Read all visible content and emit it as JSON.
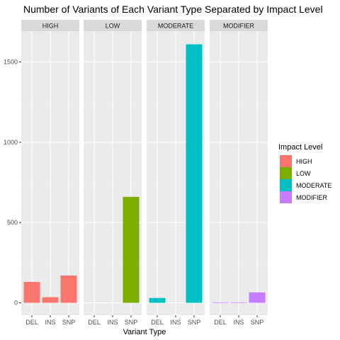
{
  "chart_data": {
    "type": "bar",
    "title": "Number of Variants of Each Variant Type Separated by Impact Level",
    "xlabel": "Variant Type",
    "ylabel": "",
    "ylim": [
      0,
      1620
    ],
    "y_ticks": [
      0,
      500,
      1000,
      1500
    ],
    "categories": [
      "DEL",
      "INS",
      "SNP"
    ],
    "facets": [
      "HIGH",
      "LOW",
      "MODERATE",
      "MODIFIER"
    ],
    "series": [
      {
        "name": "HIGH",
        "color": "#F8766D",
        "values": [
          130,
          35,
          170
        ]
      },
      {
        "name": "LOW",
        "color": "#7CAE00",
        "values": [
          0,
          0,
          660
        ]
      },
      {
        "name": "MODERATE",
        "color": "#00BFC4",
        "values": [
          30,
          0,
          1610
        ]
      },
      {
        "name": "MODIFIER",
        "color": "#C77CFF",
        "values": [
          3,
          3,
          65
        ]
      }
    ],
    "legend": {
      "title": "Impact Level",
      "placement": "right"
    },
    "grid": true
  },
  "colors": {
    "panel_background": "#EBEBEB",
    "strip_background": "#D9D9D9",
    "grid_major": "#FFFFFF",
    "grid_minor": "#F5F5F5"
  }
}
